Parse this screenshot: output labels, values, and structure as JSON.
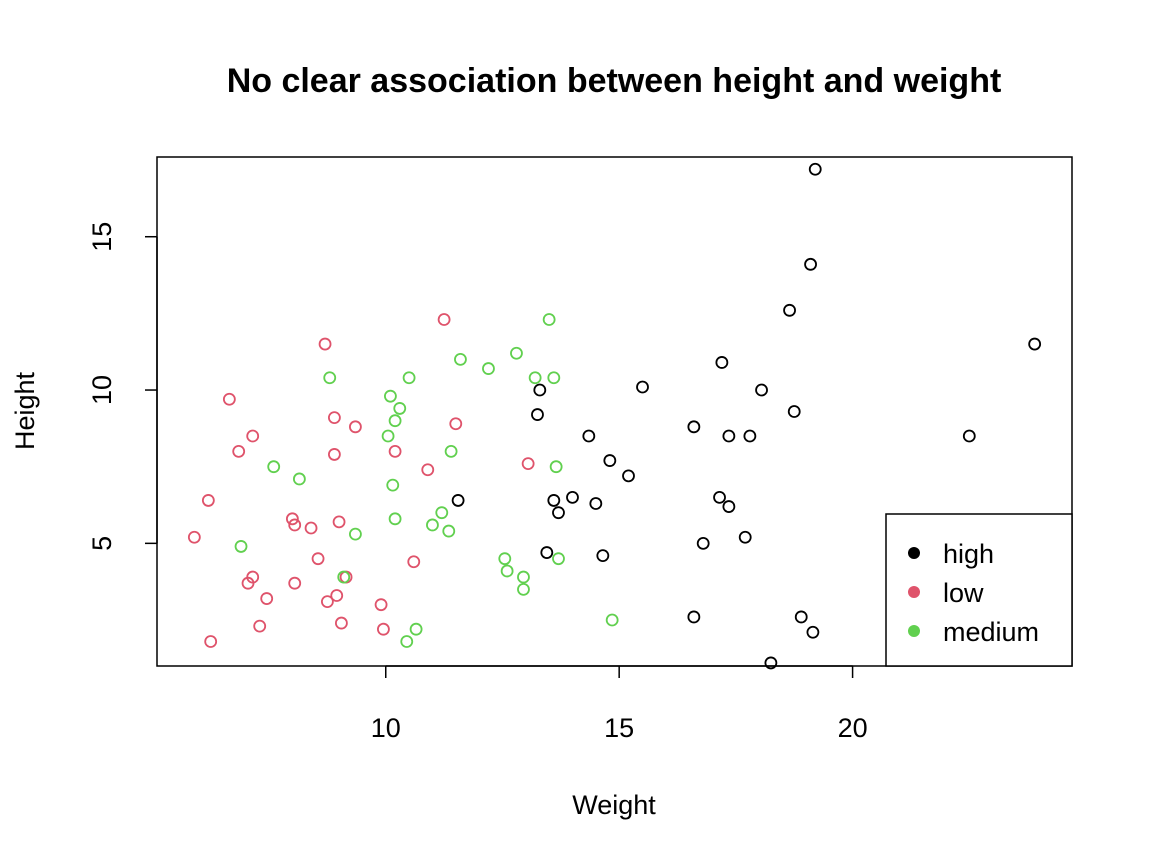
{
  "chart_data": {
    "type": "scatter",
    "title": "No clear association between height and weight",
    "xlabel": "Weight",
    "ylabel": "Height",
    "xlim": [
      5.1,
      24.7
    ],
    "ylim": [
      1.0,
      17.6
    ],
    "x_ticks": [
      10,
      15,
      20
    ],
    "y_ticks": [
      5,
      10,
      15
    ],
    "grid": false,
    "legend_position": "bottom-right",
    "series": [
      {
        "name": "high",
        "color": "#000000",
        "points": [
          [
            19.2,
            17.2
          ],
          [
            19.1,
            14.1
          ],
          [
            18.65,
            12.6
          ],
          [
            23.9,
            11.5
          ],
          [
            17.2,
            10.9
          ],
          [
            15.5,
            10.1
          ],
          [
            18.05,
            10.0
          ],
          [
            13.3,
            10.0
          ],
          [
            13.25,
            9.2
          ],
          [
            18.75,
            9.3
          ],
          [
            16.6,
            8.8
          ],
          [
            14.35,
            8.5
          ],
          [
            17.35,
            8.5
          ],
          [
            17.8,
            8.5
          ],
          [
            22.5,
            8.5
          ],
          [
            14.8,
            7.7
          ],
          [
            15.2,
            7.2
          ],
          [
            11.55,
            6.4
          ],
          [
            13.6,
            6.4
          ],
          [
            14.0,
            6.5
          ],
          [
            14.5,
            6.3
          ],
          [
            17.15,
            6.5
          ],
          [
            17.35,
            6.2
          ],
          [
            13.7,
            6.0
          ],
          [
            17.7,
            5.2
          ],
          [
            16.8,
            5.0
          ],
          [
            13.45,
            4.7
          ],
          [
            14.65,
            4.6
          ],
          [
            16.6,
            2.6
          ],
          [
            18.9,
            2.6
          ],
          [
            19.15,
            2.1
          ],
          [
            18.25,
            1.1
          ]
        ]
      },
      {
        "name": "low",
        "color": "#DF536B",
        "points": [
          [
            11.25,
            12.3
          ],
          [
            8.7,
            11.5
          ],
          [
            6.65,
            9.7
          ],
          [
            8.9,
            9.1
          ],
          [
            11.5,
            8.9
          ],
          [
            9.35,
            8.8
          ],
          [
            7.15,
            8.5
          ],
          [
            6.85,
            8.0
          ],
          [
            10.2,
            8.0
          ],
          [
            8.9,
            7.9
          ],
          [
            13.05,
            7.6
          ],
          [
            10.9,
            7.4
          ],
          [
            6.2,
            6.4
          ],
          [
            8.0,
            5.8
          ],
          [
            8.05,
            5.6
          ],
          [
            9.0,
            5.7
          ],
          [
            8.4,
            5.5
          ],
          [
            5.9,
            5.2
          ],
          [
            8.55,
            4.5
          ],
          [
            10.6,
            4.4
          ],
          [
            7.15,
            3.9
          ],
          [
            7.05,
            3.7
          ],
          [
            8.05,
            3.7
          ],
          [
            9.15,
            3.9
          ],
          [
            7.45,
            3.2
          ],
          [
            8.95,
            3.3
          ],
          [
            8.75,
            3.1
          ],
          [
            9.9,
            3.0
          ],
          [
            7.3,
            2.3
          ],
          [
            9.05,
            2.4
          ],
          [
            9.95,
            2.2
          ],
          [
            6.25,
            1.8
          ]
        ]
      },
      {
        "name": "medium",
        "color": "#61D04F",
        "points": [
          [
            13.5,
            12.3
          ],
          [
            12.8,
            11.2
          ],
          [
            11.6,
            11.0
          ],
          [
            12.2,
            10.7
          ],
          [
            8.8,
            10.4
          ],
          [
            10.5,
            10.4
          ],
          [
            13.2,
            10.4
          ],
          [
            13.6,
            10.4
          ],
          [
            10.1,
            9.8
          ],
          [
            10.3,
            9.4
          ],
          [
            10.2,
            9.0
          ],
          [
            10.05,
            8.5
          ],
          [
            11.4,
            8.0
          ],
          [
            7.6,
            7.5
          ],
          [
            13.65,
            7.5
          ],
          [
            8.15,
            7.1
          ],
          [
            10.15,
            6.9
          ],
          [
            11.2,
            6.0
          ],
          [
            10.2,
            5.8
          ],
          [
            11.0,
            5.6
          ],
          [
            11.35,
            5.4
          ],
          [
            9.35,
            5.3
          ],
          [
            6.9,
            4.9
          ],
          [
            12.55,
            4.5
          ],
          [
            13.7,
            4.5
          ],
          [
            12.6,
            4.1
          ],
          [
            9.1,
            3.9
          ],
          [
            12.95,
            3.9
          ],
          [
            12.95,
            3.5
          ],
          [
            14.85,
            2.5
          ],
          [
            10.65,
            2.2
          ],
          [
            10.45,
            1.8
          ]
        ]
      }
    ]
  }
}
